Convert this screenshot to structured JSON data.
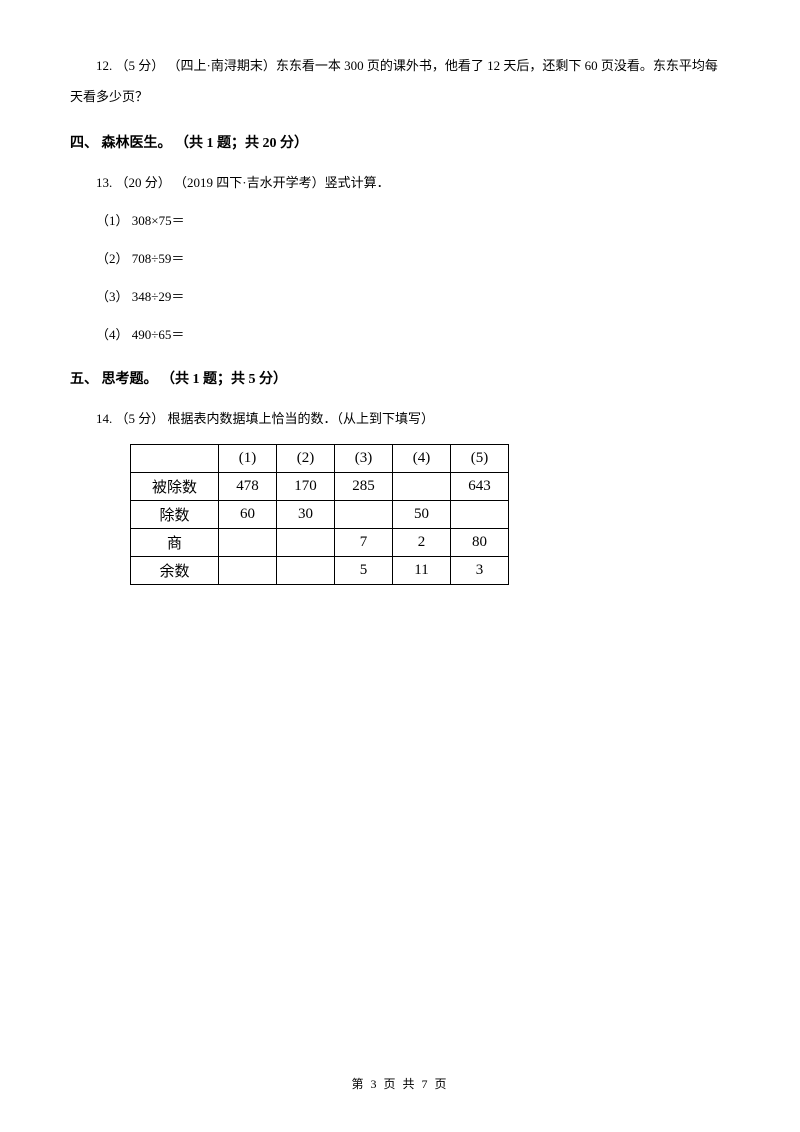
{
  "q12": {
    "text": "12. （5 分） （四上·南浔期末）东东看一本 300 页的课外书，他看了 12 天后，还剩下 60 页没看。东东平均每天看多少页？"
  },
  "section4": {
    "heading": "四、 森林医生。 （共 1 题；共 20 分）"
  },
  "q13": {
    "intro": "13. （20 分） （2019 四下·吉水开学考）竖式计算．",
    "s1": "（1） 308×75＝",
    "s2": "（2） 708÷59＝",
    "s3": "（3） 348÷29＝",
    "s4": "（4） 490÷65＝"
  },
  "section5": {
    "heading": "五、 思考题。 （共 1 题；共 5 分）"
  },
  "q14": {
    "text": "14. （5 分） 根据表内数据填上恰当的数．（从上到下填写）"
  },
  "table": {
    "header": [
      "",
      "(1)",
      "(2)",
      "(3)",
      "(4)",
      "(5)"
    ],
    "rows": [
      {
        "label": "被除数",
        "cells": [
          "478",
          "170",
          "285",
          "",
          "643"
        ]
      },
      {
        "label": "除数",
        "cells": [
          "60",
          "30",
          "",
          "50",
          ""
        ]
      },
      {
        "label": "商",
        "cells": [
          "",
          "",
          "7",
          "2",
          "80"
        ]
      },
      {
        "label": "余数",
        "cells": [
          "",
          "",
          "5",
          "11",
          "3"
        ]
      }
    ]
  },
  "footer": "第 3 页 共 7 页"
}
